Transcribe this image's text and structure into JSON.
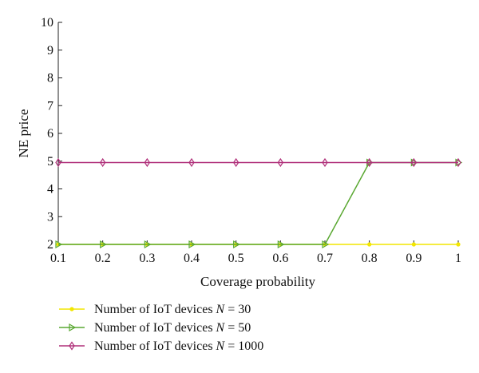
{
  "chart_data": {
    "type": "line",
    "xlabel": "Coverage probability",
    "ylabel": "NE price",
    "xlim": [
      0.1,
      1
    ],
    "ylim": [
      2,
      10
    ],
    "x": [
      0.1,
      0.2,
      0.3,
      0.4,
      0.5,
      0.6,
      0.7,
      0.8,
      0.9,
      1
    ],
    "x_tick_labels": [
      "0.1",
      "0.2",
      "0.3",
      "0.4",
      "0.5",
      "0.6",
      "0.7",
      "0.8",
      "0.9",
      "1"
    ],
    "y_tick_labels": [
      "2",
      "3",
      "4",
      "5",
      "6",
      "7",
      "8",
      "9",
      "10"
    ],
    "grid": false,
    "legend_position": "bottom-left",
    "series": [
      {
        "name": "Number of IoT devices N = 30",
        "legend_prefix": "Number of IoT devices ",
        "legend_var": "N",
        "legend_suffix": " = 30",
        "color": "#f2e600",
        "marker": "circle",
        "values": [
          2,
          2,
          2,
          2,
          2,
          2,
          2,
          2,
          2,
          2
        ]
      },
      {
        "name": "Number of IoT devices N = 50",
        "legend_prefix": "Number of IoT devices ",
        "legend_var": "N",
        "legend_suffix": " = 50",
        "color": "#5aa832",
        "marker": "triangle-right",
        "values": [
          2,
          2,
          2,
          2,
          2,
          2,
          2,
          4.95,
          4.95,
          4.95
        ]
      },
      {
        "name": "Number of IoT devices N = 1000",
        "legend_prefix": "Number of IoT devices ",
        "legend_var": "N",
        "legend_suffix": " = 1000",
        "color": "#b0307a",
        "marker": "diamond",
        "values": [
          4.95,
          4.95,
          4.95,
          4.95,
          4.95,
          4.95,
          4.95,
          4.95,
          4.95,
          4.95
        ]
      }
    ]
  }
}
